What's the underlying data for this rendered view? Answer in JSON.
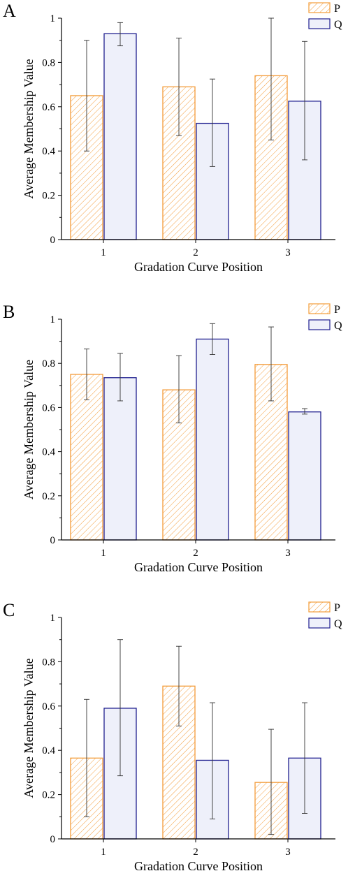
{
  "colors": {
    "P": "#f39c3a",
    "Q": "#1f1f8f",
    "Q_fill": "#eef0fa",
    "errorbar": "#333333"
  },
  "chart_data": [
    {
      "type": "bar",
      "panel_label": "A",
      "categories": [
        "1",
        "2",
        "3"
      ],
      "xlabel": "Gradation Curve Position",
      "ylabel": "Average Membership Value",
      "ylim": [
        0,
        1
      ],
      "yticks": [
        "0",
        "0.2",
        "0.4",
        "0.6",
        "0.8",
        "1"
      ],
      "legend": "top-right",
      "series": [
        {
          "name": "P",
          "values": [
            0.65,
            0.69,
            0.74
          ],
          "error_low": [
            0.4,
            0.47,
            0.45
          ],
          "error_high": [
            0.9,
            0.91,
            1.0
          ],
          "pattern": "hatched"
        },
        {
          "name": "Q",
          "values": [
            0.93,
            0.525,
            0.625
          ],
          "error_low": [
            0.875,
            0.33,
            0.36
          ],
          "error_high": [
            0.98,
            0.725,
            0.895
          ],
          "pattern": "solid"
        }
      ]
    },
    {
      "type": "bar",
      "panel_label": "B",
      "categories": [
        "1",
        "2",
        "3"
      ],
      "xlabel": "Gradation Curve Position",
      "ylabel": "Average Membership Value",
      "ylim": [
        0,
        1
      ],
      "yticks": [
        "0",
        "0.2",
        "0.4",
        "0.6",
        "0.8",
        "1"
      ],
      "legend": "top-right",
      "series": [
        {
          "name": "P",
          "values": [
            0.75,
            0.68,
            0.795
          ],
          "error_low": [
            0.635,
            0.53,
            0.63
          ],
          "error_high": [
            0.865,
            0.835,
            0.965
          ],
          "pattern": "hatched"
        },
        {
          "name": "Q",
          "values": [
            0.735,
            0.91,
            0.58
          ],
          "error_low": [
            0.63,
            0.84,
            0.57
          ],
          "error_high": [
            0.845,
            0.98,
            0.595
          ],
          "pattern": "solid"
        }
      ]
    },
    {
      "type": "bar",
      "panel_label": "C",
      "categories": [
        "1",
        "2",
        "3"
      ],
      "xlabel": "Gradation Curve Position",
      "ylabel": "Average Membership Value",
      "ylim": [
        0,
        1
      ],
      "yticks": [
        "0",
        "0.2",
        "0.4",
        "0.6",
        "0.8",
        "1"
      ],
      "legend": "top-right",
      "series": [
        {
          "name": "P",
          "values": [
            0.365,
            0.69,
            0.255
          ],
          "error_low": [
            0.1,
            0.51,
            0.02
          ],
          "error_high": [
            0.63,
            0.87,
            0.495
          ],
          "pattern": "hatched"
        },
        {
          "name": "Q",
          "values": [
            0.59,
            0.355,
            0.365
          ],
          "error_low": [
            0.285,
            0.09,
            0.115
          ],
          "error_high": [
            0.9,
            0.615,
            0.615
          ],
          "pattern": "solid"
        }
      ]
    }
  ]
}
